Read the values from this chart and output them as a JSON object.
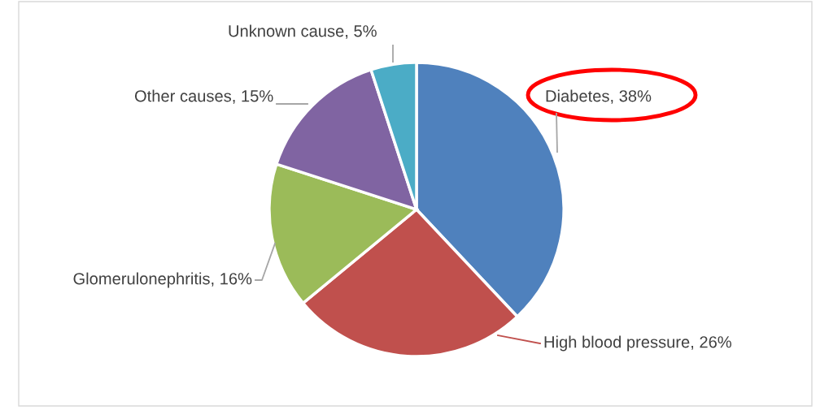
{
  "chart_data": {
    "type": "pie",
    "categories": [
      "Diabetes",
      "High blood pressure",
      "Glomerulonephritis",
      "Other causes",
      "Unknown cause"
    ],
    "values": [
      38,
      26,
      16,
      15,
      5
    ],
    "value_labels": [
      "38%",
      "26%",
      "16%",
      "15%",
      "5%"
    ],
    "colors": [
      "#4f81bd",
      "#c0504d",
      "#9bbb59",
      "#8064a2",
      "#4bacc6"
    ],
    "legend": false
  }
}
